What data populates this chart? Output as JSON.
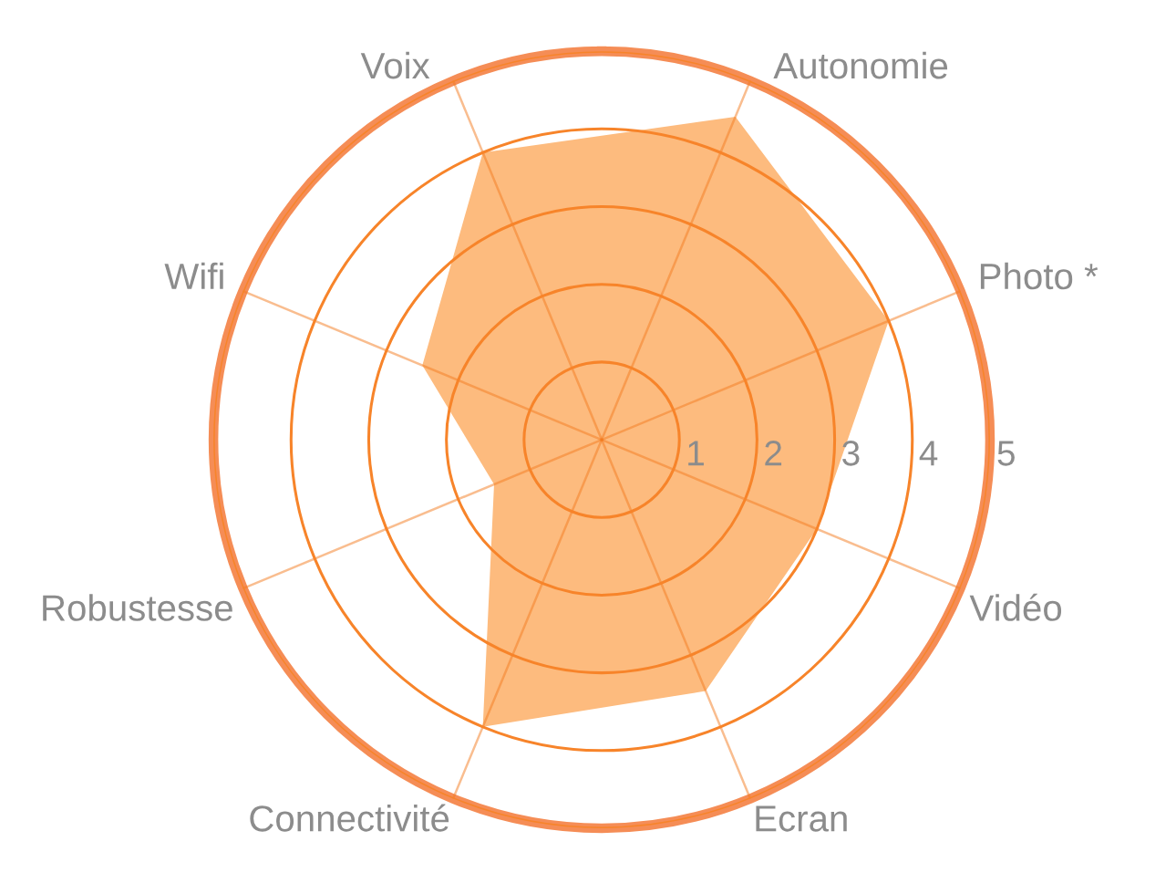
{
  "chart_data": {
    "type": "radar",
    "categories": [
      "Autonomie",
      "Photo *",
      "Vidéo",
      "Ecran",
      "Connectivité",
      "Robustesse",
      "Wifi",
      "Voix"
    ],
    "series": [
      {
        "color": "#fdbb7e",
        "values": [
          4.5,
          4,
          3,
          3.5,
          4,
          1.5,
          2.5,
          4
        ]
      }
    ],
    "ylim": [
      0,
      5
    ],
    "yticks": [
      1,
      2,
      3,
      4,
      5
    ],
    "grid": true
  }
}
